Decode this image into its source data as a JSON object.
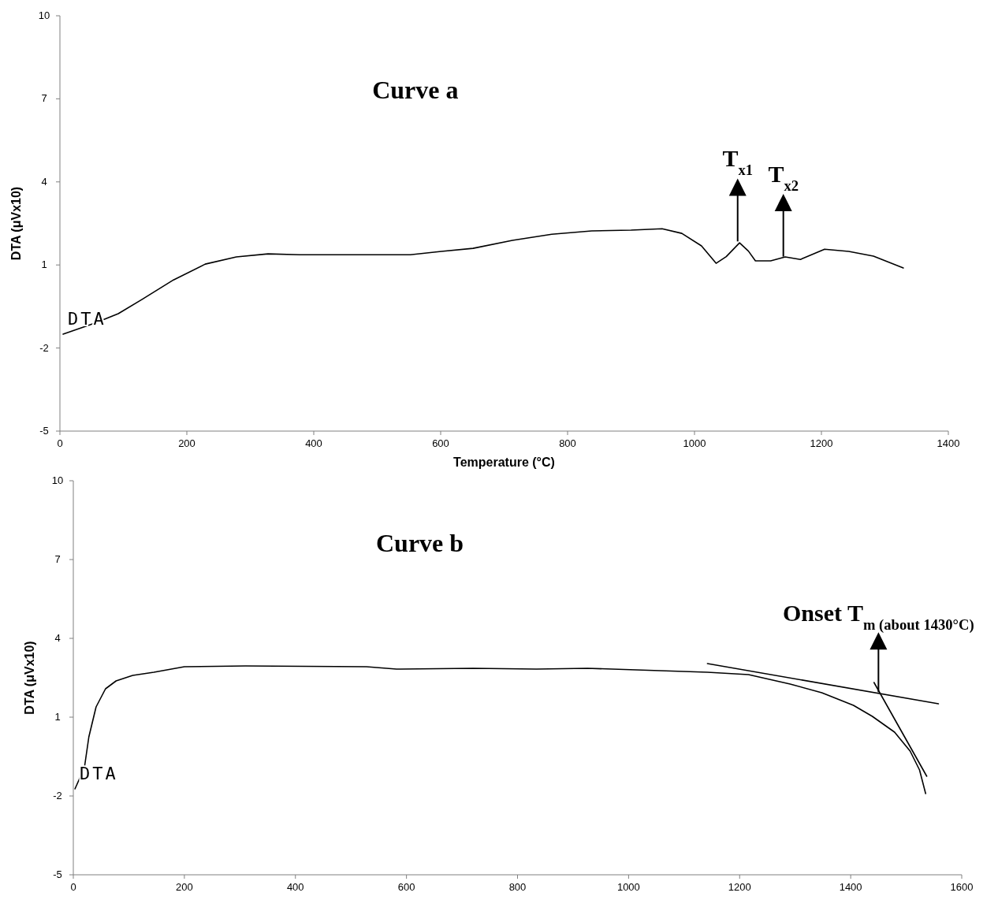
{
  "chart_data": [
    {
      "type": "line",
      "title": "Curve a",
      "xlabel": "Temperature (°C)",
      "ylabel": "DTA (μVx10)",
      "xlim": [
        0,
        1400
      ],
      "ylim": [
        -5,
        10
      ],
      "xticks": [
        0,
        200,
        400,
        600,
        800,
        1000,
        1200,
        1400
      ],
      "yticks": [
        -5,
        -2,
        1,
        4,
        7,
        10
      ],
      "series": [
        {
          "name": "DTA",
          "color": "#000000",
          "x": [
            5,
            55,
            92,
            129,
            179,
            229,
            278,
            328,
            378,
            552,
            601,
            651,
            713,
            775,
            838,
            900,
            949,
            980,
            1011,
            1034,
            1050,
            1071,
            1085,
            1096,
            1120,
            1143,
            1167,
            1205,
            1243,
            1282,
            1329
          ],
          "values": [
            -1.5,
            -1.1,
            -0.76,
            -0.25,
            0.46,
            1.03,
            1.29,
            1.4,
            1.37,
            1.37,
            1.49,
            1.6,
            1.89,
            2.11,
            2.23,
            2.26,
            2.31,
            2.14,
            1.69,
            1.06,
            1.3,
            1.8,
            1.5,
            1.15,
            1.15,
            1.29,
            1.2,
            1.57,
            1.49,
            1.32,
            0.89
          ]
        }
      ],
      "annotations": [
        {
          "text": "T$_{x1}$",
          "x": 1068,
          "y": 1.85
        },
        {
          "text": "T$_{x2}$",
          "x": 1140,
          "y": 1.3
        }
      ]
    },
    {
      "type": "line",
      "title": "Curve b",
      "ylabel": "DTA (μVx10)",
      "xlim": [
        0,
        1600
      ],
      "ylim": [
        -5,
        10
      ],
      "xticks": [
        0,
        200,
        400,
        600,
        800,
        1000,
        1200,
        1400,
        1600
      ],
      "yticks": [
        -5,
        -2,
        1,
        4,
        7,
        10
      ],
      "series": [
        {
          "name": "DTA",
          "color": "#000000",
          "x": [
            3,
            20,
            28,
            41,
            58,
            77,
            107,
            145,
            200,
            310,
            528,
            582,
            720,
            834,
            926,
            1142,
            1216,
            1291,
            1348,
            1405,
            1439,
            1479,
            1507,
            1524,
            1535
          ],
          "values": [
            -1.73,
            -0.92,
            0.25,
            1.39,
            2.08,
            2.38,
            2.59,
            2.71,
            2.92,
            2.95,
            2.92,
            2.83,
            2.86,
            2.83,
            2.86,
            2.71,
            2.62,
            2.26,
            1.93,
            1.45,
            1.03,
            0.43,
            -0.29,
            -1.01,
            -1.91
          ]
        },
        {
          "type": "line",
          "color": "#000000",
          "x": [
            1142,
            1558
          ],
          "values": [
            3.04,
            1.51
          ]
        },
        {
          "type": "line",
          "color": "#000000",
          "x": [
            1442,
            1537
          ],
          "values": [
            2.32,
            -1.25
          ]
        }
      ],
      "annotations": [
        {
          "text": "Onset T$_{m (about 1430°C)}$",
          "x": 1450,
          "y": 1.95
        }
      ]
    }
  ]
}
